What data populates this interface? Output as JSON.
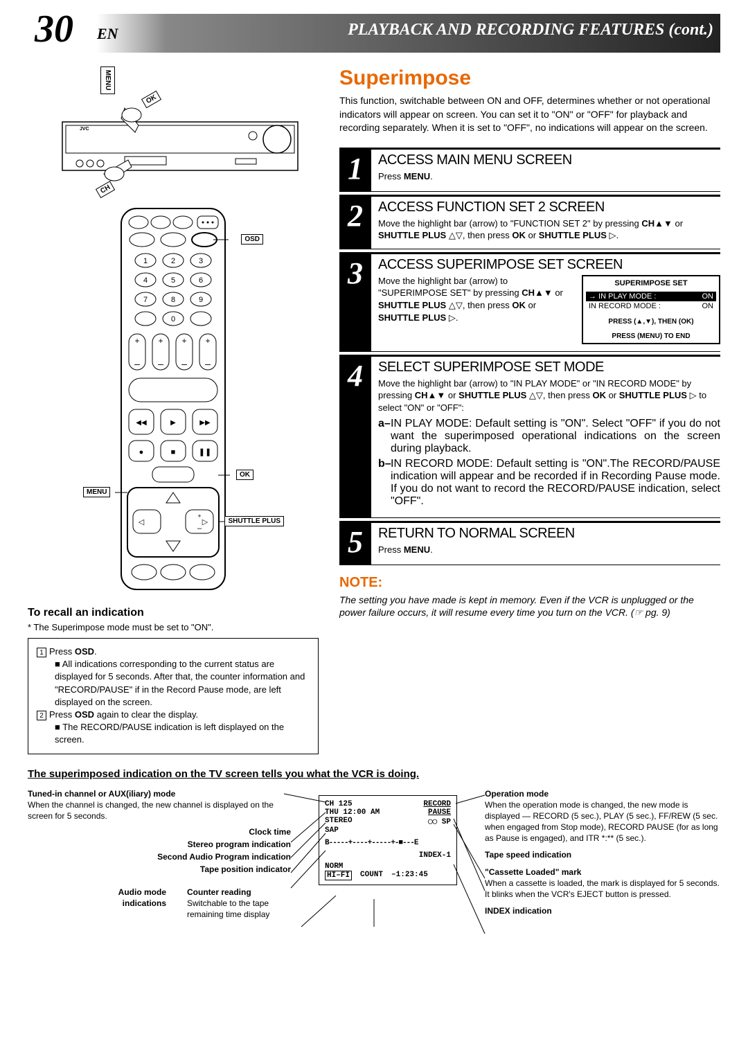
{
  "header": {
    "page_num": "30",
    "lang": "EN",
    "title": "PLAYBACK AND RECORDING FEATURES (cont.)"
  },
  "diagram_labels": {
    "vcr_menu": "MENU",
    "vcr_ok": "OK",
    "vcr_ch": "CH",
    "remote_osd": "OSD",
    "remote_menu": "MENU",
    "remote_ok": "OK",
    "remote_shuttle": "SHUTTLE PLUS"
  },
  "main": {
    "title": "Superimpose",
    "intro": "This function, switchable between ON and OFF, determines whether or not operational indicators will appear on screen. You can set it to \"ON\" or \"OFF\" for playback and recording separately. When it is set to \"OFF\", no indications will appear on the screen."
  },
  "steps": [
    {
      "num": "1",
      "title": "ACCESS MAIN MENU SCREEN",
      "text": "Press <b>MENU</b>."
    },
    {
      "num": "2",
      "title": "ACCESS FUNCTION SET 2  SCREEN",
      "text": "Move the highlight bar (arrow) to \"FUNCTION SET 2\" by pressing <b>CH▲▼</b> or <b>SHUTTLE PLUS</b> △▽, then press <b>OK</b> or <b>SHUTTLE PLUS</b> ▷."
    },
    {
      "num": "3",
      "title": "ACCESS SUPERIMPOSE SET SCREEN",
      "text": "Move the highlight bar (arrow) to \"SUPERIMPOSE SET\" by pressing <b>CH▲▼</b> or <b>SHUTTLE PLUS</b> △▽, then press <b>OK</b> or <b>SHUTTLE PLUS</b> ▷."
    },
    {
      "num": "4",
      "title": "SELECT SUPERIMPOSE SET MODE",
      "text": "Move the highlight bar (arrow) to \"IN PLAY MODE\" or \"IN RECORD MODE\" by pressing <b>CH▲▼</b> or <b>SHUTTLE PLUS</b> △▽, then press <b>OK</b> or <b>SHUTTLE PLUS</b> ▷ to select \"ON\" or \"OFF\":",
      "sub": [
        {
          "letter": "a–",
          "text": "IN PLAY MODE: Default setting is \"ON\". Select \"OFF\" if you do not want the superimposed operational indications on the screen during playback."
        },
        {
          "letter": "b–",
          "text": "IN RECORD MODE: Default setting is \"ON\".The RECORD/PAUSE indication will appear and be recorded if in Recording Pause mode. If you do not want to record the RECORD/PAUSE indication, select \"OFF\"."
        }
      ]
    },
    {
      "num": "5",
      "title": "RETURN TO NORMAL SCREEN",
      "text": "Press <b>MENU</b>."
    }
  ],
  "osd": {
    "title": "SUPERIMPOSE SET",
    "row1_label": "→ IN PLAY MODE :",
    "row1_val": "ON",
    "row2_label": "IN RECORD MODE :",
    "row2_val": "ON",
    "foot1": "PRESS (▲,▼), THEN (OK)",
    "foot2": "PRESS (MENU) TO END"
  },
  "note": {
    "head": "NOTE:",
    "body": "The setting you have made is kept in memory. Even if the VCR is unplugged or the power failure occurs, it will resume every time you turn on the VCR. (☞ pg. 9)"
  },
  "recall": {
    "head": "To recall an indication",
    "pre": "* The Superimpose mode must be set to \"ON\".",
    "items": [
      "Press <b>OSD</b>.",
      "Press <b>OSD</b> again to clear the display."
    ],
    "sub1": "All indications corresponding to the current status are displayed for 5 seconds. After that, the counter information and \"RECORD/PAUSE\" if in the Record Pause mode, are left displayed on the screen.",
    "sub2": "The RECORD/PAUSE indication is left displayed on the screen."
  },
  "bottom": {
    "title": "The superimposed indication on the TV screen tells you what the VCR is doing.",
    "left": [
      {
        "head": "Tuned-in channel or AUX(iliary) mode",
        "text": "When the channel is changed, the new channel is displayed on the screen for 5 seconds."
      },
      {
        "head": "Clock time",
        "text": ""
      },
      {
        "head": "Stereo program indication",
        "text": ""
      },
      {
        "head": "Second Audio Program indication",
        "text": ""
      },
      {
        "head": "Tape position indicator",
        "text": ""
      },
      {
        "head": "Audio mode indications",
        "text": ""
      },
      {
        "head": "Counter reading",
        "text": "Switchable to the tape remaining time display"
      }
    ],
    "right": [
      {
        "head": "Operation mode",
        "text": "When the operation mode is changed, the new mode is displayed — RECORD (5 sec.), PLAY (5 sec.), FF/REW (5 sec. when engaged from Stop mode), RECORD PAUSE (for as long as Pause is engaged), and ITR *:** (5 sec.)."
      },
      {
        "head": "Tape speed indication",
        "text": ""
      },
      {
        "head": "\"Cassette Loaded\" mark",
        "text": "When a cassette is loaded, the mark is displayed for 5 seconds. It blinks when the VCR's EJECT button is pressed."
      },
      {
        "head": "INDEX indication",
        "text": ""
      }
    ],
    "osd": {
      "l1a": "CH   125",
      "l1b": "RECORD",
      "l2a": "THU 12:00 AM",
      "l2b": "PAUSE",
      "l3a": "STEREO",
      "l3b": "◯◯ SP",
      "l4": "SAP",
      "l5": "B-----+----+-----+-■---E",
      "l6": "INDEX-1",
      "l7a": "NORM",
      "l8a": "HI–FI",
      "l8b": "COUNT",
      "l8c": "–1:23:45"
    }
  },
  "colors": {
    "accent": "#e86800"
  }
}
